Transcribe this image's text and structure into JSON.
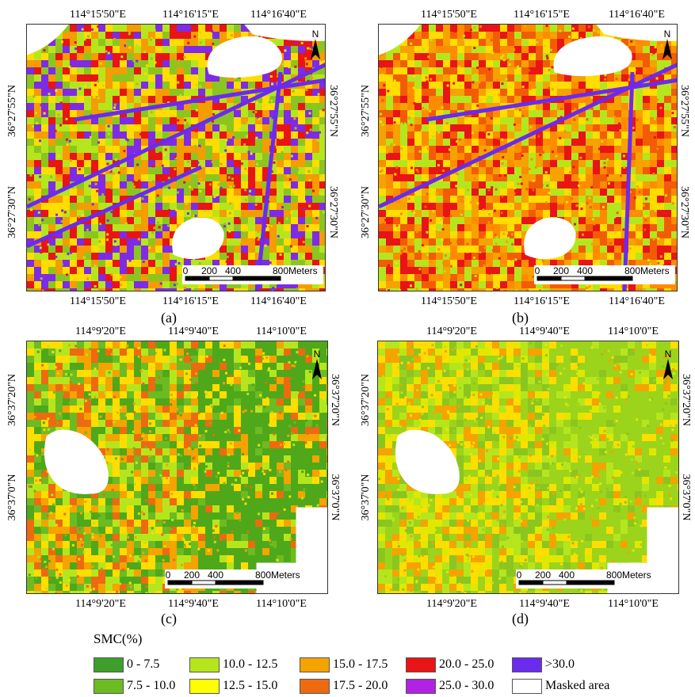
{
  "panels": [
    {
      "caption": "(a)",
      "lon_labels": [
        "114°15'50\"E",
        "114°16'15\"E",
        "114°16'40\"E"
      ],
      "lat_labels_left": [
        "36°27'55\"N",
        "36°27'30\"N"
      ],
      "lat_labels_right": [
        "36°27'55\"N",
        "36°27'30\"N"
      ],
      "palette": [
        "#e81416",
        "#ffdd00",
        "#b5e61d",
        "#f59c00",
        "#7f2be5",
        "#8bc620"
      ],
      "scale_labels": [
        "0",
        "200",
        "400",
        "800",
        "Meters"
      ]
    },
    {
      "caption": "(b)",
      "lon_labels": [
        "114°15'50\"E",
        "114°16'15\"E",
        "114°16'40\"E"
      ],
      "lat_labels_left": [
        "36°27'55\"N",
        "36°27'30\"N"
      ],
      "lat_labels_right": [
        "36°27'55\"N",
        "36°27'30\"N"
      ],
      "palette": [
        "#f25c05",
        "#e81416",
        "#ff8c00",
        "#ffdd00",
        "#b5e61d",
        "#f5a300"
      ],
      "scale_labels": [
        "0",
        "200",
        "400",
        "800",
        "Meters"
      ]
    },
    {
      "caption": "(c)",
      "lon_labels": [
        "114°9'20\"E",
        "114°9'40\"E",
        "114°10'0\"E"
      ],
      "lat_labels_left": [
        "36°37'20\"N",
        "36°37'0\"N"
      ],
      "lat_labels_right": [
        "36°37'20\"N",
        "36°37'0\"N"
      ],
      "palette": [
        "#ffdd00",
        "#b5e61d",
        "#4fa81a",
        "#6cbb23",
        "#f5a300",
        "#ee6a10"
      ],
      "scale_labels": [
        "0",
        "200",
        "400",
        "800",
        "Meters"
      ]
    },
    {
      "caption": "(d)",
      "lon_labels": [
        "114°9'20\"E",
        "114°9'40\"E",
        "114°10'0\"E"
      ],
      "lat_labels_left": [
        "36°37'20\"N",
        "36°37'0\"N"
      ],
      "lat_labels_right": [
        "36°37'20\"N",
        "36°37'0\"N"
      ],
      "palette": [
        "#b5e61d",
        "#ffdd00",
        "#9cd41c",
        "#e0e800",
        "#f5a300",
        "#8bc620"
      ],
      "scale_labels": [
        "0",
        "200",
        "400",
        "800",
        "Meters"
      ]
    }
  ],
  "north_label": "N",
  "legend": {
    "title": "SMC(%)",
    "items": [
      {
        "label": "0 - 7.5",
        "color": "#3ea02a"
      },
      {
        "label": "10.0 - 12.5",
        "color": "#b5e61d"
      },
      {
        "label": "15.0 - 17.5",
        "color": "#f5a300"
      },
      {
        "label": "20.0 - 25.0",
        "color": "#e81416"
      },
      {
        "label": ">30.0",
        "color": "#6a2bef"
      },
      {
        "label": "7.5 - 10.0",
        "color": "#6cbb23"
      },
      {
        "label": "12.5 - 15.0",
        "color": "#ffff00"
      },
      {
        "label": "17.5 - 20.0",
        "color": "#ee6a10"
      },
      {
        "label": "25.0 - 30.0",
        "color": "#b222e5"
      },
      {
        "label": "Masked area",
        "color": "#ffffff"
      }
    ]
  }
}
